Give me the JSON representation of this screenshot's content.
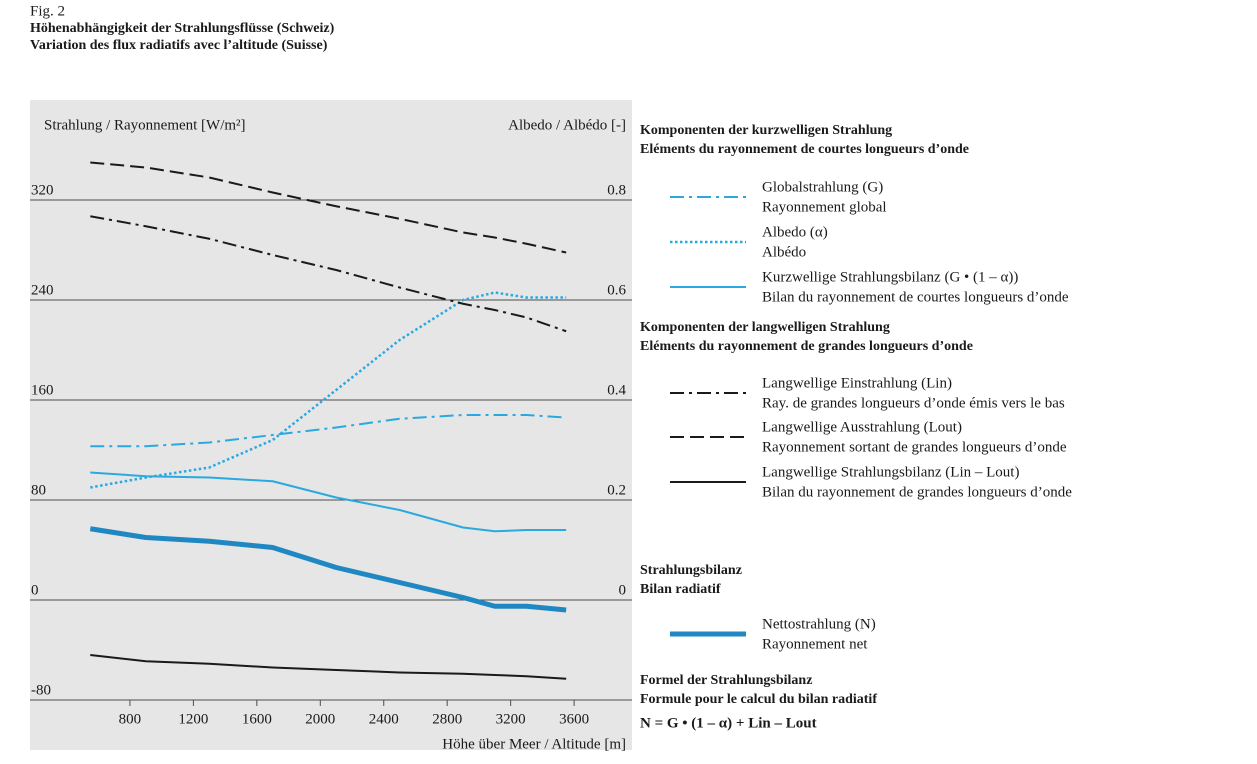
{
  "chart_data": {
    "type": "line",
    "figure_label": "Fig. 2",
    "title": "Höhenabhängigkeit der Strahlungsflüsse (Schweiz)",
    "subtitle": "Variation des flux radiatifs avec l’altitude (Suisse)",
    "y_label": "Strahlung / Rayonnement [W/m²]",
    "y2_label": "Albedo / Albédo [-]",
    "x_label": "Höhe über Meer / Altitude [m]",
    "x": [
      550,
      900,
      1300,
      1700,
      2100,
      2500,
      2900,
      3100,
      3300,
      3550
    ],
    "xlim": [
      170,
      3965
    ],
    "xticks": [
      800,
      1200,
      1600,
      2000,
      2400,
      2800,
      3200,
      3600
    ],
    "ylim": [
      -100,
      400
    ],
    "yticks": [
      -80,
      0,
      80,
      160,
      240,
      320
    ],
    "y2lim": [
      -0.25,
      1.0
    ],
    "y2ticks": [
      0,
      0.2,
      0.4,
      0.6,
      0.8
    ],
    "grid": true,
    "series": [
      {
        "name": "Globalstrahlung (G)",
        "subname": "Rayonnement global",
        "color": "#29a9e0",
        "style": "dash-dot",
        "values": [
          123,
          123,
          126,
          132,
          138,
          145,
          148,
          148,
          148,
          146
        ]
      },
      {
        "name": "Albedo (α)",
        "subname": "Albédo",
        "color": "#29a9e0",
        "style": "dotted",
        "axis": "y2",
        "values": [
          0.225,
          0.245,
          0.265,
          0.32,
          0.42,
          0.52,
          0.6,
          0.615,
          0.605,
          0.605
        ]
      },
      {
        "name": "Kurzwellige Strahlungsbilanz (G • (1 – α))",
        "subname": "Bilan du rayonnement de courtes longueurs d’onde",
        "color": "#29a9e0",
        "style": "solid",
        "values": [
          102,
          99,
          98,
          95,
          82,
          72,
          58,
          55,
          56,
          56
        ]
      },
      {
        "name": "Langwellige Einstrahlung (Lin)",
        "subname": "Ray. de grandes longueurs d’onde émis vers le bas",
        "color": "#1a1a1a",
        "style": "dash-dot",
        "values": [
          307,
          299,
          289,
          276,
          264,
          250,
          237,
          232,
          226,
          215
        ]
      },
      {
        "name": "Langwellige Ausstrahlung (Lout)",
        "subname": "Rayonnement sortant de grandes longueurs d’onde",
        "color": "#1a1a1a",
        "style": "dashed",
        "values": [
          350,
          346,
          338,
          326,
          315,
          305,
          294,
          290,
          285,
          278
        ]
      },
      {
        "name": "Langwellige Strahlungsbilanz (Lin – Lout)",
        "subname": "Bilan du rayonnement de grandes longueurs d’onde",
        "color": "#1a1a1a",
        "style": "solid",
        "values": [
          -44,
          -49,
          -51,
          -54,
          -56,
          -58,
          -59,
          -60,
          -61,
          -63
        ]
      },
      {
        "name": "Nettostrahlung (N)",
        "subname": "Rayonnement net",
        "color": "#1f88c2",
        "style": "thick",
        "values": [
          57,
          50,
          47,
          42,
          26,
          14,
          2,
          -5,
          -5,
          -8
        ]
      }
    ],
    "legend_groups": [
      {
        "title": "Komponenten der kurzwelligen Strahlung",
        "subtitle": "Eléments du rayonnement de courtes longueurs d’onde"
      },
      {
        "title": "Komponenten der langwelligen Strahlung",
        "subtitle": "Eléments du rayonnement de grandes longueurs d’onde"
      },
      {
        "title": "Strahlungsbilanz",
        "subtitle": "Bilan radiatif"
      }
    ],
    "formula_title": "Formel der Strahlungsbilanz",
    "formula_subtitle": "Formule pour le calcul du bilan radiatif",
    "formula": "N = G • (1 – α) + Lin – Lout"
  }
}
